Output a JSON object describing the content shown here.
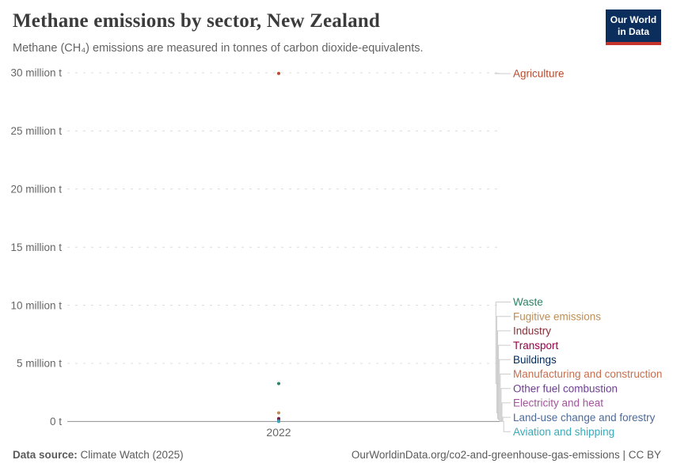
{
  "header": {
    "title": "Methane emissions by sector, New Zealand",
    "subtitle": "Methane (CH₄) emissions are measured in tonnes of carbon dioxide-equivalents.",
    "logo": {
      "line1": "Our World",
      "line2": "in Data"
    }
  },
  "footer": {
    "source_label": "Data source:",
    "source_value": " Climate Watch (2025)",
    "right_text": "OurWorldinData.org/co2-and-greenhouse-gas-emissions | CC BY"
  },
  "colors": {
    "logo_bg": "#0c2e5c",
    "logo_stripe": "#c5332b",
    "grid": "#dcdcdc",
    "axis": "#8f8f8f",
    "tick_text": "#666666",
    "connector": "#cccccc"
  },
  "chart_data": {
    "type": "scatter",
    "title": "Methane emissions by sector, New Zealand",
    "unit": "tonnes of carbon dioxide-equivalents",
    "x": [
      2022
    ],
    "x_tick_label": "2022",
    "ylim_million_t": [
      0,
      30
    ],
    "grid": "dashed",
    "legend_position": "right",
    "yticks": [
      {
        "value_million_t": 0,
        "label": "0 t"
      },
      {
        "value_million_t": 5,
        "label": "5 million t"
      },
      {
        "value_million_t": 10,
        "label": "10 million t"
      },
      {
        "value_million_t": 15,
        "label": "15 million t"
      },
      {
        "value_million_t": 20,
        "label": "20 million t"
      },
      {
        "value_million_t": 25,
        "label": "25 million t"
      },
      {
        "value_million_t": 30,
        "label": "30 million t"
      }
    ],
    "series": [
      {
        "name": "Agriculture",
        "color": "#b94a2c",
        "year": 2022,
        "value_million_t": 29.95
      },
      {
        "name": "Waste",
        "color": "#2c8465",
        "year": 2022,
        "value_million_t": 3.26
      },
      {
        "name": "Fugitive emissions",
        "color": "#be8e54",
        "year": 2022,
        "value_million_t": 0.74
      },
      {
        "name": "Industry",
        "color": "#883039",
        "year": 2022,
        "value_million_t": 0.26
      },
      {
        "name": "Transport",
        "color": "#970046",
        "year": 2022,
        "value_million_t": 0.16
      },
      {
        "name": "Buildings",
        "color": "#00295b",
        "year": 2022,
        "value_million_t": 0.12
      },
      {
        "name": "Manufacturing and construction",
        "color": "#c96e4c",
        "year": 2022,
        "value_million_t": 0.08
      },
      {
        "name": "Other fuel combustion",
        "color": "#6d3e91",
        "year": 2022,
        "value_million_t": 0.06
      },
      {
        "name": "Electricity and heat",
        "color": "#a2559c",
        "year": 2022,
        "value_million_t": 0.04
      },
      {
        "name": "Land-use change and forestry",
        "color": "#4c6a9c",
        "year": 2022,
        "value_million_t": 0.02
      },
      {
        "name": "Aviation and shipping",
        "color": "#38aaba",
        "year": 2022,
        "value_million_t": 0.004
      }
    ]
  }
}
